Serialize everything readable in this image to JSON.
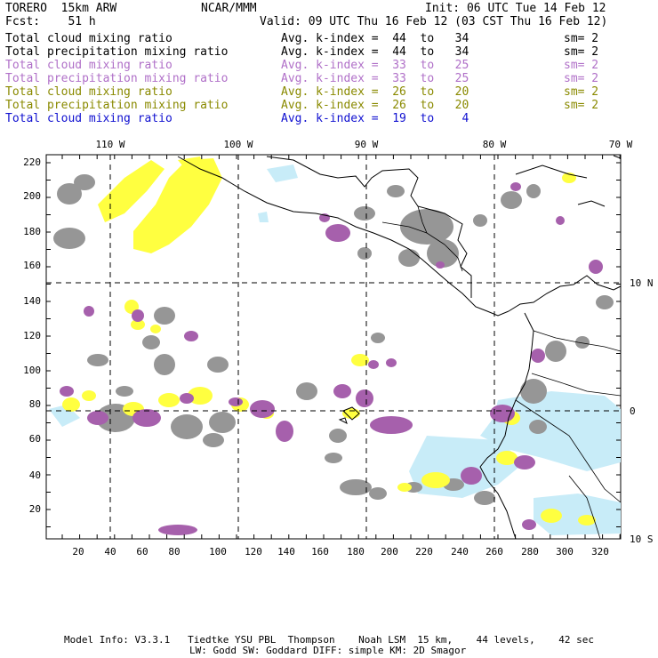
{
  "header": {
    "model": "TORERO  15km ARW",
    "org": "NCAR/MMM",
    "init": "Init: 06 UTC Tue 14 Feb 12",
    "fcst": "Fcst:    51 h",
    "valid": "Valid: 09 UTC Thu 16 Feb 12 (03 CST Thu 16 Feb 12)"
  },
  "legend": [
    {
      "field": "Total cloud mixing ratio",
      "kindex": "Avg. k-index =  44  to   34",
      "sm": "sm= 2",
      "color": "#000000"
    },
    {
      "field": "Total precipitation mixing ratio",
      "kindex": "Avg. k-index =  44  to   34",
      "sm": "sm= 2",
      "color": "#000000"
    },
    {
      "field": "Total cloud mixing ratio",
      "kindex": "Avg. k-index =  33  to   25",
      "sm": "sm= 2",
      "color": "#b070c8"
    },
    {
      "field": "Total precipitation mixing ratio",
      "kindex": "Avg. k-index =  33  to   25",
      "sm": "sm= 2",
      "color": "#b070c8"
    },
    {
      "field": "Total cloud mixing ratio",
      "kindex": "Avg. k-index =  26  to   20",
      "sm": "sm= 2",
      "color": "#8a8a00"
    },
    {
      "field": "Total precipitation mixing ratio",
      "kindex": "Avg. k-index =  26  to   20",
      "sm": "sm= 2",
      "color": "#8a8a00"
    },
    {
      "field": "Total cloud mixing ratio",
      "kindex": "Avg. k-index =  19  to    4",
      "sm": "",
      "color": "#1010d0"
    }
  ],
  "axes": {
    "top_lon_labels": [
      "110 W",
      "100 W",
      "90 W",
      "80 W",
      "70 W"
    ],
    "right_lat_labels": [
      "10 N",
      "0",
      "10 S"
    ],
    "left_ticks": [
      "20",
      "40",
      "60",
      "80",
      "100",
      "120",
      "140",
      "160",
      "180",
      "200",
      "220"
    ],
    "bottom_ticks": [
      "20",
      "40",
      "60",
      "80",
      "100",
      "120",
      "140",
      "160",
      "180",
      "200",
      "220",
      "240",
      "260",
      "280",
      "300",
      "320"
    ]
  },
  "footer": {
    "line1": "Model Info: V3.3.1   Tiedtke YSU PBL  Thompson    Noah LSM  15 km,    44 levels,    42 sec",
    "line2": "LW: Godd SW: Goddard DIFF: simple KM: 2D Smagor"
  },
  "colors": {
    "gray_cloud": "#969696",
    "purple_precip": "#a660ac",
    "yellow_precip": "#ffff40",
    "lightblue_cloud": "#c8ecf8",
    "coast": "#000000"
  }
}
